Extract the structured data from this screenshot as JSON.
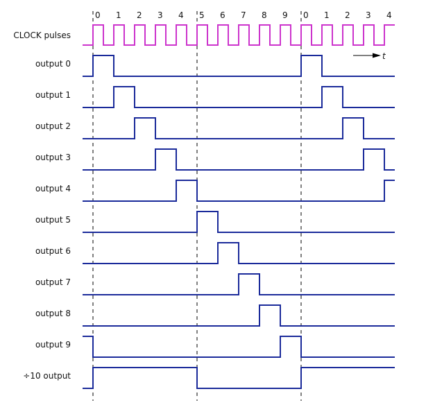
{
  "tick_labels": [
    "0",
    "1",
    "2",
    "3",
    "4",
    "5",
    "6",
    "7",
    "8",
    "9",
    "0",
    "1",
    "2",
    "3",
    "4"
  ],
  "time_label": "t",
  "colors": {
    "clock": "#cc33cc",
    "signal": "#1a2a9a",
    "dashes": "#000000"
  },
  "dashed_markers_at_count": [
    0,
    5,
    10
  ],
  "time_range_counts": [
    -0.5,
    14.5
  ],
  "signals": [
    {
      "label": "CLOCK pulses",
      "type": "clock",
      "high": [
        [
          0,
          0.5
        ],
        [
          1,
          1.5
        ],
        [
          2,
          2.5
        ],
        [
          3,
          3.5
        ],
        [
          4,
          4.5
        ],
        [
          5,
          5.5
        ],
        [
          6,
          6.5
        ],
        [
          7,
          7.5
        ],
        [
          8,
          8.5
        ],
        [
          9,
          9.5
        ],
        [
          10,
          10.5
        ],
        [
          11,
          11.5
        ],
        [
          12,
          12.5
        ],
        [
          13,
          13.5
        ],
        [
          14,
          14.5
        ]
      ]
    },
    {
      "label": "output 0",
      "high": [
        [
          0,
          1
        ],
        [
          10,
          11
        ]
      ]
    },
    {
      "label": "output 1",
      "high": [
        [
          1,
          2
        ],
        [
          11,
          12
        ]
      ]
    },
    {
      "label": "output 2",
      "high": [
        [
          2,
          3
        ],
        [
          12,
          13
        ]
      ]
    },
    {
      "label": "output 3",
      "high": [
        [
          3,
          4
        ],
        [
          13,
          14
        ]
      ]
    },
    {
      "label": "output 4",
      "high": [
        [
          4,
          5
        ],
        [
          14,
          14.5
        ]
      ]
    },
    {
      "label": "output 5",
      "high": [
        [
          5,
          6
        ]
      ]
    },
    {
      "label": "output 6",
      "high": [
        [
          6,
          7
        ]
      ]
    },
    {
      "label": "output 7",
      "high": [
        [
          7,
          8
        ]
      ]
    },
    {
      "label": "output 8",
      "high": [
        [
          8,
          9
        ]
      ]
    },
    {
      "label": "output 9",
      "high": [
        [
          -0.5,
          0
        ],
        [
          9,
          10
        ]
      ]
    },
    {
      "label": "÷10 output",
      "high": [
        [
          0,
          5
        ],
        [
          10,
          14.5
        ]
      ]
    }
  ]
}
